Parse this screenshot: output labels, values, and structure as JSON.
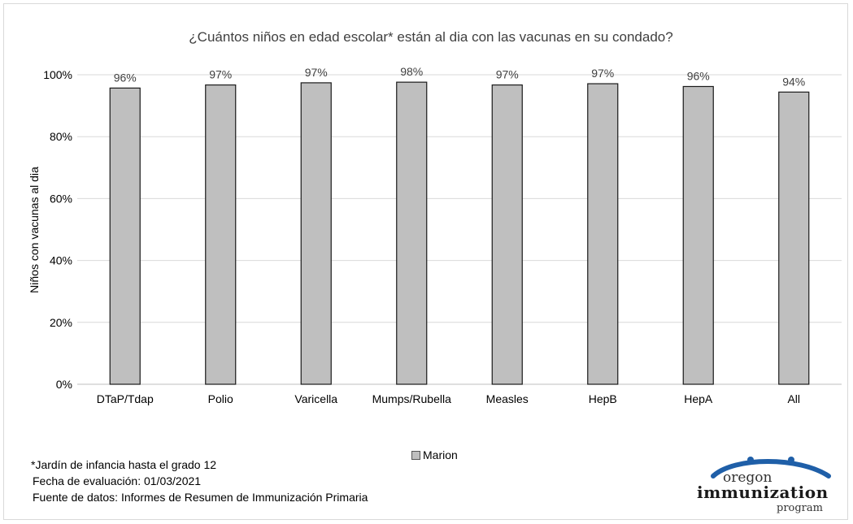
{
  "chart_data": {
    "type": "bar",
    "title": "¿Cuántos niños en edad escolar* están al dia con las vacunas en su condado?",
    "ylabel": "Niños con vacunas al dia",
    "xlabel": "",
    "categories": [
      "DTaP/Tdap",
      "Polio",
      "Varicella",
      "Mumps/Rubella",
      "Measles",
      "HepB",
      "HepA",
      "All"
    ],
    "series": [
      {
        "name": "Marion",
        "values": [
          95.7,
          96.7,
          97.4,
          97.6,
          96.7,
          97.1,
          96.2,
          94.4
        ]
      }
    ],
    "data_labels": [
      "96%",
      "97%",
      "97%",
      "98%",
      "97%",
      "97%",
      "96%",
      "94%"
    ],
    "ylim": [
      0,
      100
    ],
    "yticks": [
      "0%",
      "20%",
      "40%",
      "60%",
      "80%",
      "100%"
    ],
    "grid": true,
    "legend_position": "bottom",
    "bar_color": "#bfbfbf"
  },
  "legend": {
    "label": "Marion"
  },
  "notes": {
    "line1": "*Jardín de infancia hasta el grado 12",
    "line2": "Fecha de evaluación: 01/03/2021",
    "line3": "Fuente de datos: Informes de Resumen de Immunización Primaria"
  },
  "logo": {
    "word1": "oregon",
    "word2": "immunization",
    "word3": "program"
  }
}
